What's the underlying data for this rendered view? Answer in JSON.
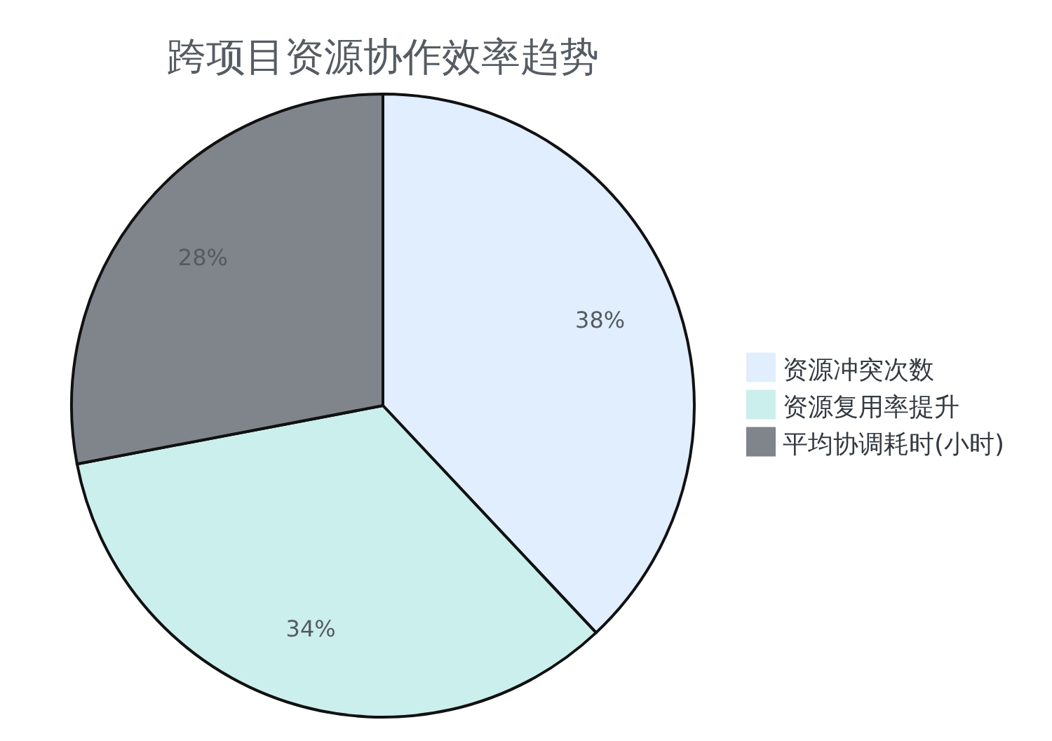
{
  "chart_data": {
    "type": "pie",
    "title": "跨项目资源协作效率趋势",
    "categories": [
      "资源冲突次数",
      "资源复用率提升",
      "平均协调耗时(小时)"
    ],
    "values": [
      38,
      34,
      28
    ],
    "value_labels": [
      "38%",
      "34%",
      "28%"
    ],
    "colors": [
      "#e0eefe",
      "#cbefec",
      "#80858c"
    ],
    "legend": "right"
  }
}
